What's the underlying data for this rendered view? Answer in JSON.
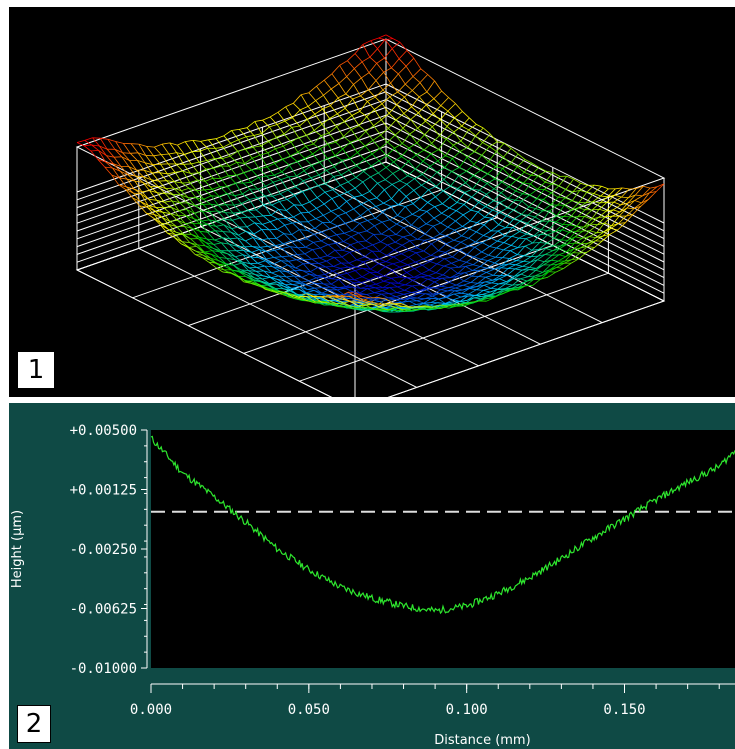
{
  "figure": {
    "panel1_label": "1",
    "panel2_label": "2"
  },
  "chart_data": [
    {
      "type": "surface",
      "panel": "1",
      "description_shape": "bowl",
      "colormap": [
        "#0000c8",
        "#00c8ff",
        "#00d000",
        "#ffff00",
        "#ff8000",
        "#ff0000"
      ],
      "background": "#000000",
      "box_color": "#ffffff"
    },
    {
      "type": "line",
      "panel": "2",
      "xlabel": "Distance (mm)",
      "ylabel": "Height (µm)",
      "xlim": [
        0.0,
        0.185
      ],
      "ylim": [
        -0.01,
        0.005
      ],
      "xticks": [
        "0.000",
        "0.050",
        "0.100",
        "0.150"
      ],
      "xtick_values": [
        0.0,
        0.05,
        0.1,
        0.15
      ],
      "yticks": [
        "+0.00500",
        "+0.00125",
        "-0.00250",
        "-0.00625",
        "-0.01000"
      ],
      "ytick_values": [
        0.005,
        0.00125,
        -0.0025,
        -0.00625,
        -0.01
      ],
      "reference_line": -0.00015,
      "line_color": "#2ee62e",
      "series": [
        {
          "x": [
            0.0,
            0.005,
            0.01,
            0.02,
            0.03,
            0.04,
            0.05,
            0.06,
            0.07,
            0.08,
            0.09,
            0.1,
            0.11,
            0.12,
            0.13,
            0.14,
            0.15,
            0.16,
            0.17,
            0.18,
            0.185
          ],
          "values": [
            0.0045,
            0.0034,
            0.0023,
            0.0008,
            -0.0008,
            -0.0025,
            -0.0038,
            -0.0049,
            -0.0056,
            -0.0061,
            -0.0064,
            -0.0061,
            -0.0053,
            -0.0043,
            -0.0031,
            -0.0018,
            -0.0006,
            0.0006,
            0.0017,
            0.0027,
            0.0037
          ]
        }
      ]
    }
  ]
}
